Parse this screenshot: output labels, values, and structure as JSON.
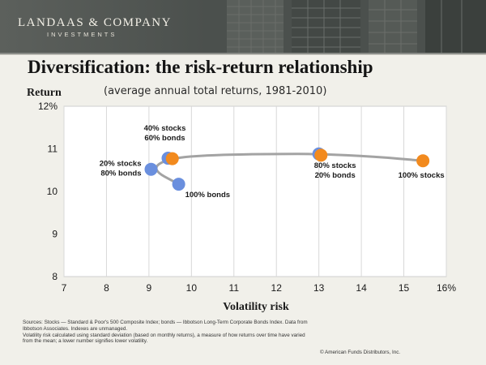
{
  "header": {
    "logo_main": "LANDAAS & COMPANY",
    "logo_sub": "INVESTMENTS",
    "brand_color": "#575c58"
  },
  "slide": {
    "title": "Diversification: the risk-return relationship",
    "subtitle": "(average annual total returns, 1981-2010)",
    "ylabel": "Return",
    "xlabel": "Volatility risk"
  },
  "chart_data": {
    "type": "scatter",
    "xlabel": "Volatility risk",
    "ylabel": "Return",
    "xlim": [
      7,
      16
    ],
    "ylim": [
      8,
      12
    ],
    "x_ticks": [
      "7",
      "8",
      "9",
      "10",
      "11",
      "12",
      "13",
      "14",
      "15",
      "16%"
    ],
    "y_ticks": [
      "8",
      "9",
      "10",
      "11",
      "12%"
    ],
    "grid": "vertical",
    "line_color": "#a3a3a3",
    "series": [
      {
        "color": "#6a8fde",
        "points": [
          {
            "x": 9.7,
            "y": 10.17,
            "label": [
              "100% bonds"
            ]
          },
          {
            "x": 9.05,
            "y": 10.52,
            "label": [
              "20% stocks",
              "80% bonds"
            ]
          },
          {
            "x": 9.45,
            "y": 10.78,
            "label": [
              "40% stocks",
              "60% bonds"
            ]
          },
          {
            "x": 13.0,
            "y": 10.88,
            "label": [
              "80% stocks",
              "20% bonds"
            ]
          }
        ]
      },
      {
        "color": "#f28a1e",
        "points": [
          {
            "x": 9.55,
            "y": 10.77
          },
          {
            "x": 13.05,
            "y": 10.85
          },
          {
            "x": 15.45,
            "y": 10.72,
            "label": [
              "100% stocks"
            ]
          }
        ]
      }
    ],
    "frontier": [
      {
        "x": 9.7,
        "y": 10.17
      },
      {
        "x": 9.05,
        "y": 10.52
      },
      {
        "x": 9.45,
        "y": 10.78
      },
      {
        "x": 10.5,
        "y": 10.86
      },
      {
        "x": 12.0,
        "y": 10.88
      },
      {
        "x": 13.0,
        "y": 10.88
      },
      {
        "x": 14.3,
        "y": 10.82
      },
      {
        "x": 15.45,
        "y": 10.72
      }
    ]
  },
  "footer": {
    "sources": [
      "Sources: Stocks — Standard & Poor's 500 Composite Index; bonds — Ibbotson Long-Term Corporate Bonds Index. Data from",
      "Ibbotson Associates. Indexes are unmanaged.",
      "Volatility risk calculated using standard deviation (based on monthly returns), a measure of how returns over time have varied",
      "from the mean; a lower number signifies lower volatility."
    ],
    "copyright": "© American Funds Distributors, Inc."
  }
}
